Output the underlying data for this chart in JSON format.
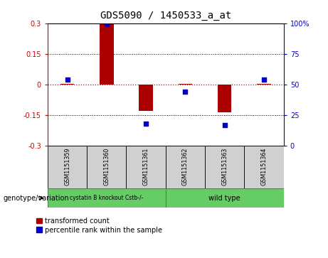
{
  "title": "GDS5090 / 1450533_a_at",
  "samples": [
    "GSM1151359",
    "GSM1151360",
    "GSM1151361",
    "GSM1151362",
    "GSM1151363",
    "GSM1151364"
  ],
  "red_bars": [
    0.003,
    0.295,
    -0.13,
    0.003,
    -0.135,
    0.003
  ],
  "blue_dots": [
    54,
    99,
    18,
    44,
    17,
    54
  ],
  "ylim_left": [
    -0.3,
    0.3
  ],
  "ylim_right": [
    0,
    100
  ],
  "yticks_left": [
    -0.3,
    -0.15,
    0.0,
    0.15,
    0.3
  ],
  "yticks_right": [
    0,
    25,
    50,
    75,
    100
  ],
  "bar_color": "#aa0000",
  "dot_color": "#0000cc",
  "hline_color": "#cc0000",
  "left_axis_color": "#cc0000",
  "right_axis_color": "#0000cc",
  "bar_width": 0.35,
  "legend_labels": [
    "transformed count",
    "percentile rank within the sample"
  ],
  "genotype_label": "genotype/variation",
  "group1_label": "cystatin B knockout Cstb-/-",
  "group2_label": "wild type",
  "sample_bg": "#d0d0d0",
  "group_green": "#66cc66",
  "plot_bg": "#ffffff"
}
